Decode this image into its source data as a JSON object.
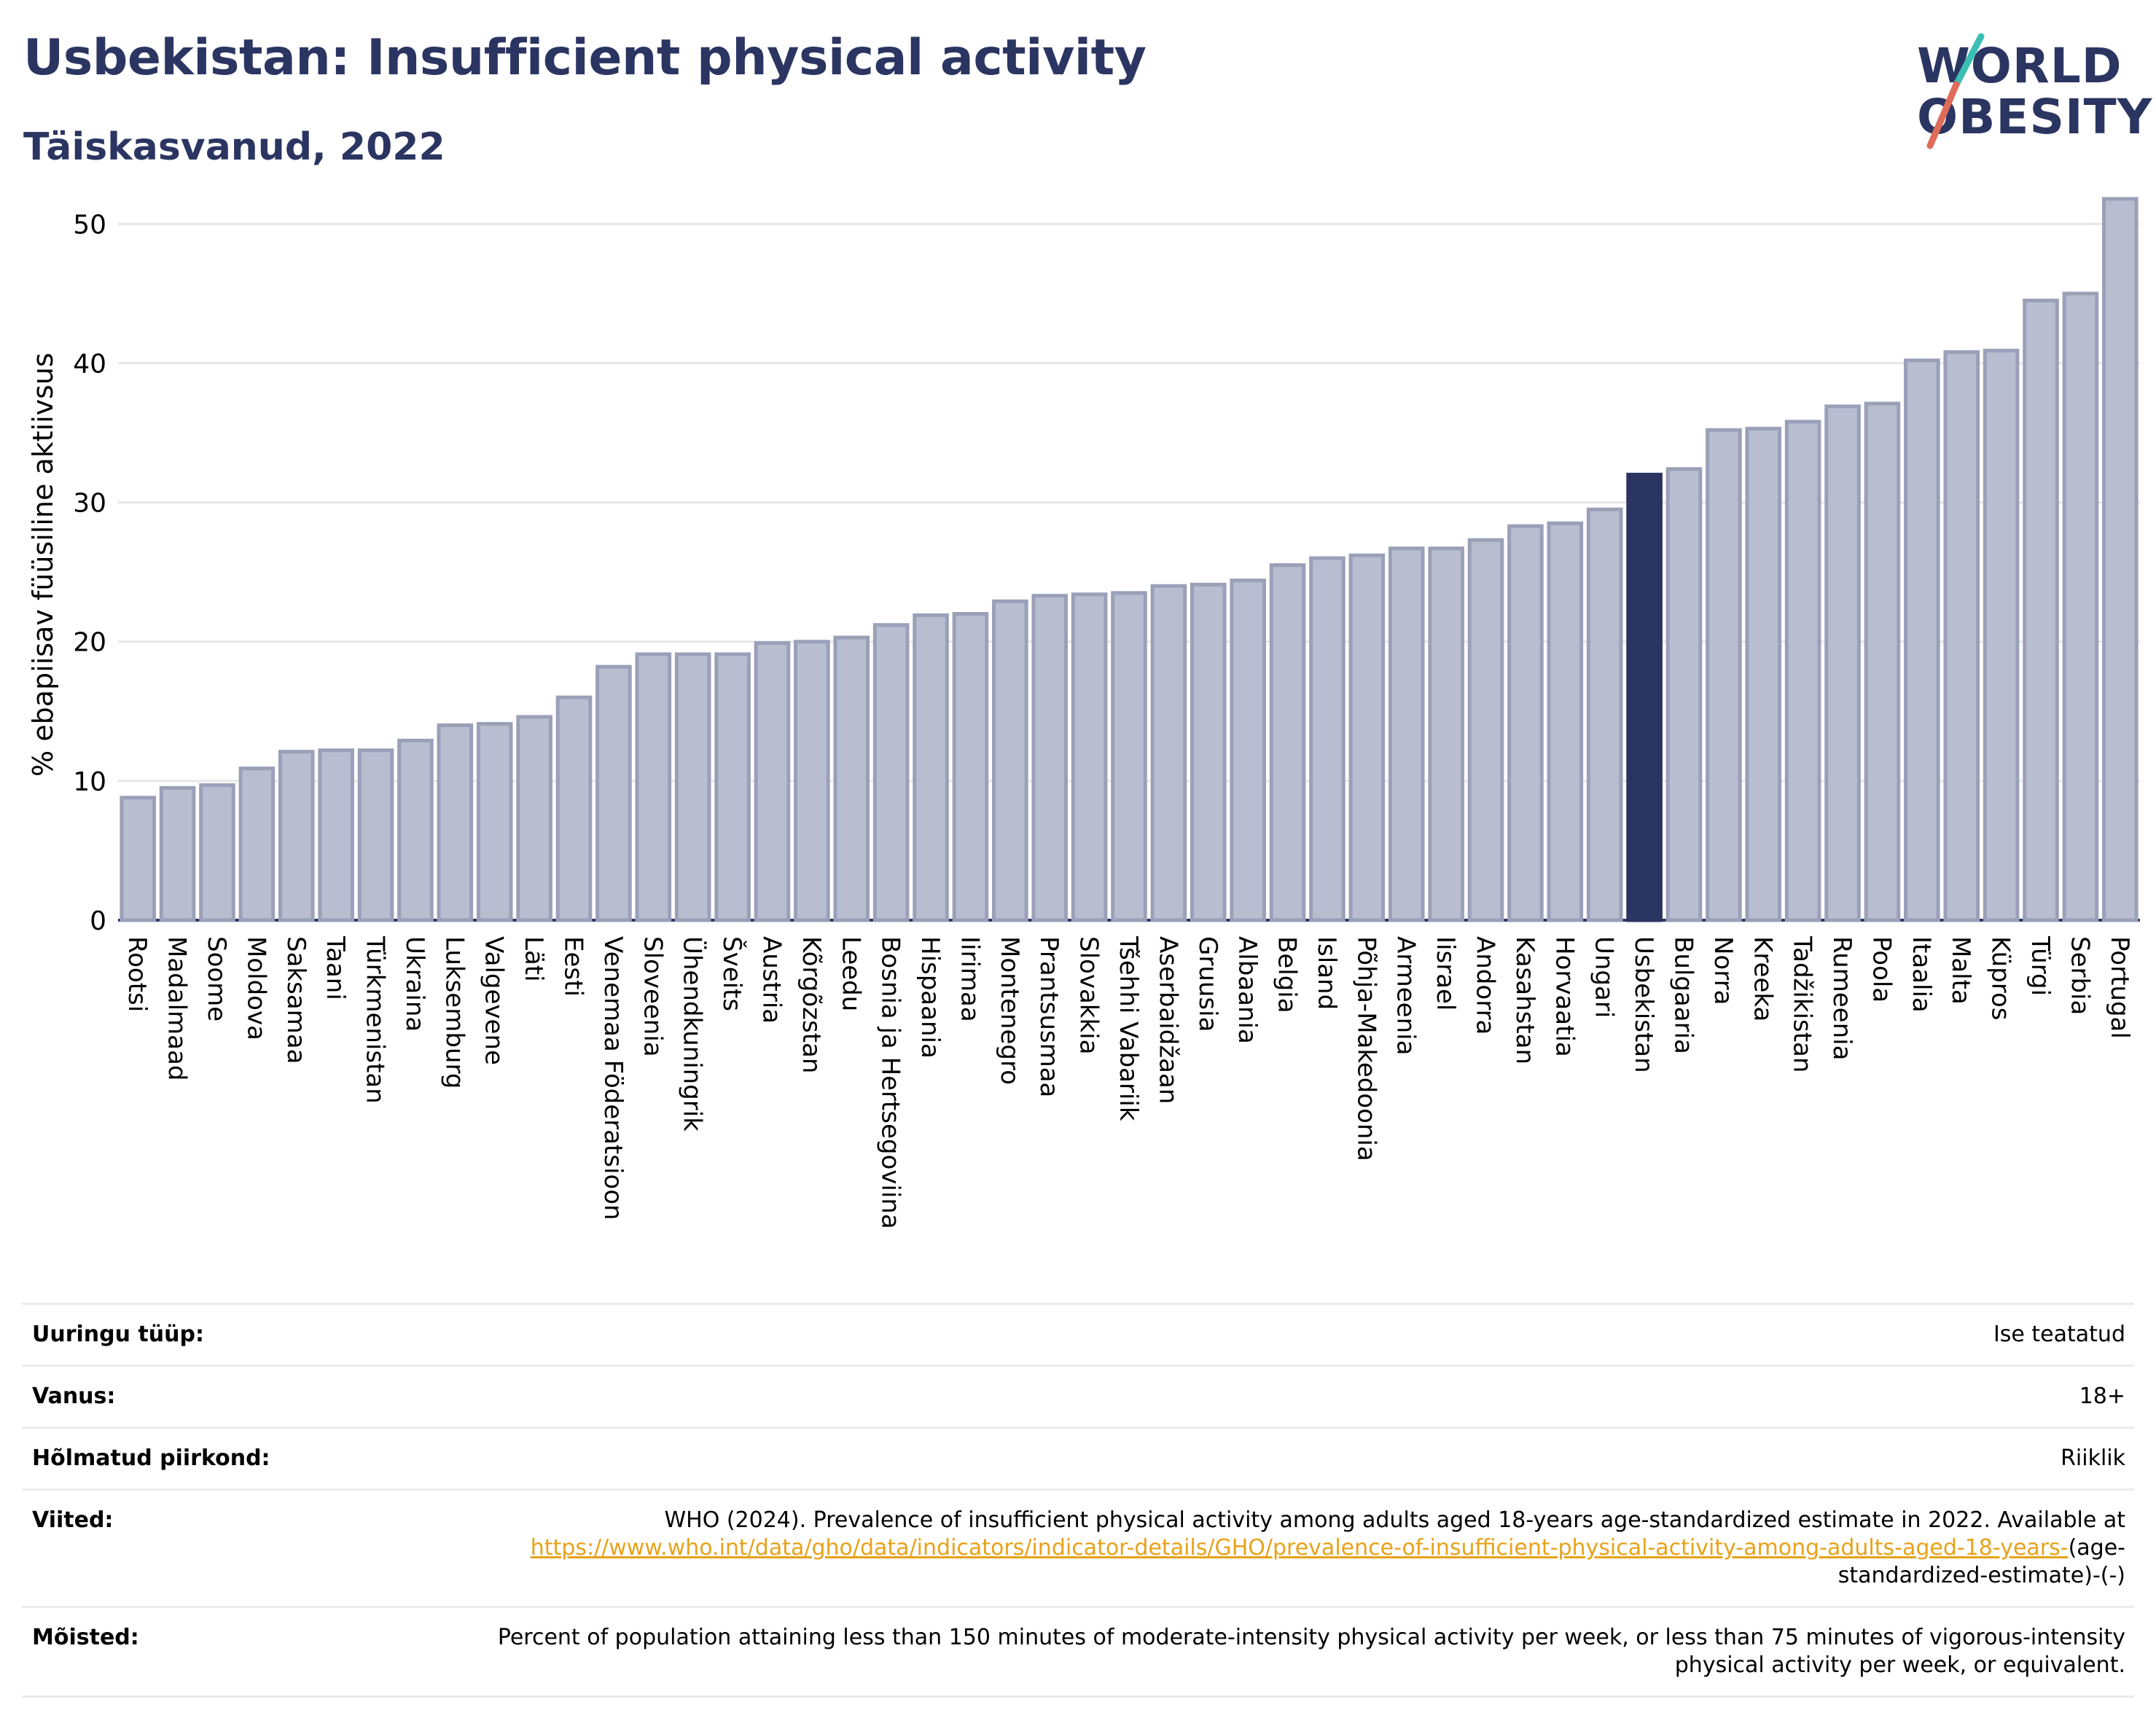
{
  "title": "Usbekistan: Insufficient physical activity",
  "subtitle": "Täiskasvanud, 2022",
  "logo": {
    "line1": "WORLD",
    "line2": "OBESITY"
  },
  "colors": {
    "bar": "#b8bdcf",
    "bar_edge": "#9aa0b8",
    "highlight": "#2b3562",
    "title": "#2b3562",
    "link": "#e8a21a"
  },
  "chart_data": {
    "type": "bar",
    "ylabel": "% ebapiisav füüsiline aktiivsus",
    "xlabel": "",
    "ylim": [
      0,
      53
    ],
    "yticks": [
      0,
      10,
      20,
      30,
      40,
      50
    ],
    "grid": true,
    "highlight": "Usbekistan",
    "categories": [
      "Rootsi",
      "Madalmaad",
      "Soome",
      "Moldova",
      "Saksamaa",
      "Taani",
      "Türkmenistan",
      "Ukraina",
      "Luksemburg",
      "Valgevene",
      "Läti",
      "Eesti",
      "Venemaa Föderatsioon",
      "Sloveenia",
      "Ühendkuningrik",
      "Šveits",
      "Austria",
      "Kõrgõzstan",
      "Leedu",
      "Bosnia ja Hertsegoviina",
      "Hispaania",
      "Iirimaa",
      "Montenegro",
      "Prantsusmaa",
      "Slovakkia",
      "Tšehhi Vabariik",
      "Aserbaidžaan",
      "Gruusia",
      "Albaania",
      "Belgia",
      "Island",
      "Põhja-Makedoonia",
      "Armeenia",
      "Iisrael",
      "Andorra",
      "Kasahstan",
      "Horvaatia",
      "Ungari",
      "Usbekistan",
      "Bulgaaria",
      "Norra",
      "Kreeka",
      "Tadžikistan",
      "Rumeenia",
      "Poola",
      "Itaalia",
      "Malta",
      "Küpros",
      "Türgi",
      "Serbia",
      "Portugal"
    ],
    "values": [
      8.8,
      9.5,
      9.7,
      10.9,
      12.1,
      12.2,
      12.2,
      12.9,
      14.0,
      14.1,
      14.6,
      16.0,
      18.2,
      19.1,
      19.1,
      19.1,
      19.9,
      20.0,
      20.3,
      21.2,
      21.9,
      22.0,
      22.9,
      23.3,
      23.4,
      23.5,
      24.0,
      24.1,
      24.4,
      25.5,
      26.0,
      26.2,
      26.7,
      26.7,
      27.3,
      28.3,
      28.5,
      29.5,
      32.0,
      32.4,
      35.2,
      35.3,
      35.8,
      36.9,
      37.1,
      40.2,
      40.8,
      40.9,
      44.5,
      45.0,
      51.8
    ]
  },
  "info": [
    {
      "key": "Uuringu tüüp:",
      "value": "Ise teatatud"
    },
    {
      "key": "Vanus:",
      "value": "18+"
    },
    {
      "key": "Hõlmatud piirkond:",
      "value": "Riiklik"
    },
    {
      "key": "Viited:",
      "value_pre": "WHO (2024). Prevalence of insufficient physical activity among adults aged 18-years age-standardized estimate in 2022. Available at",
      "link": "https://www.who.int/data/gho/data/indicators/indicator-details/GHO/prevalence-of-insufficient-physical-activity-among-adults-aged-18-years-",
      "value_post": "(age-standardized-estimate)-(-)"
    },
    {
      "key": "Mõisted:",
      "value": "Percent of population attaining less than 150 minutes of moderate-intensity physical activity per week, or less than 75 minutes of vigorous-intensity physical activity per week, or equivalent."
    }
  ]
}
